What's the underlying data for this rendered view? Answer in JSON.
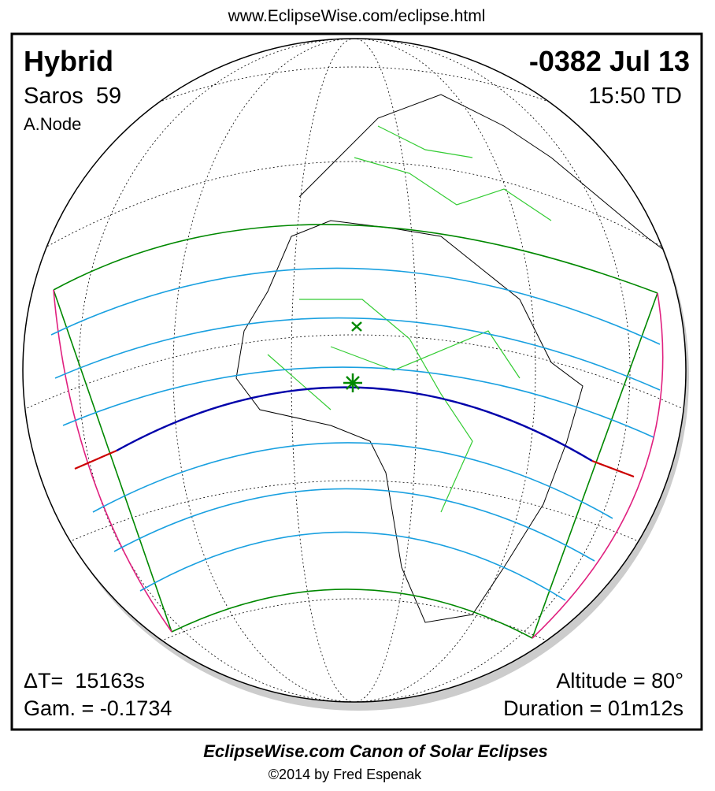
{
  "header": {
    "url": "www.EclipseWise.com/eclipse.html"
  },
  "eclipse": {
    "type": "Hybrid",
    "saros": "Saros  59",
    "node": "A.Node",
    "date": "-0382 Jul 13",
    "time": "15:50 TD"
  },
  "parameters": {
    "delta_t": "ΔT=  15163s",
    "gamma": "Gam. = -0.1734",
    "altitude": "Altitude = 80°",
    "duration": "Duration = 01m12s"
  },
  "footer": {
    "title": "EclipseWise.com Canon of Solar Eclipses",
    "copyright": "©2014 by Fred Espenak"
  }
}
